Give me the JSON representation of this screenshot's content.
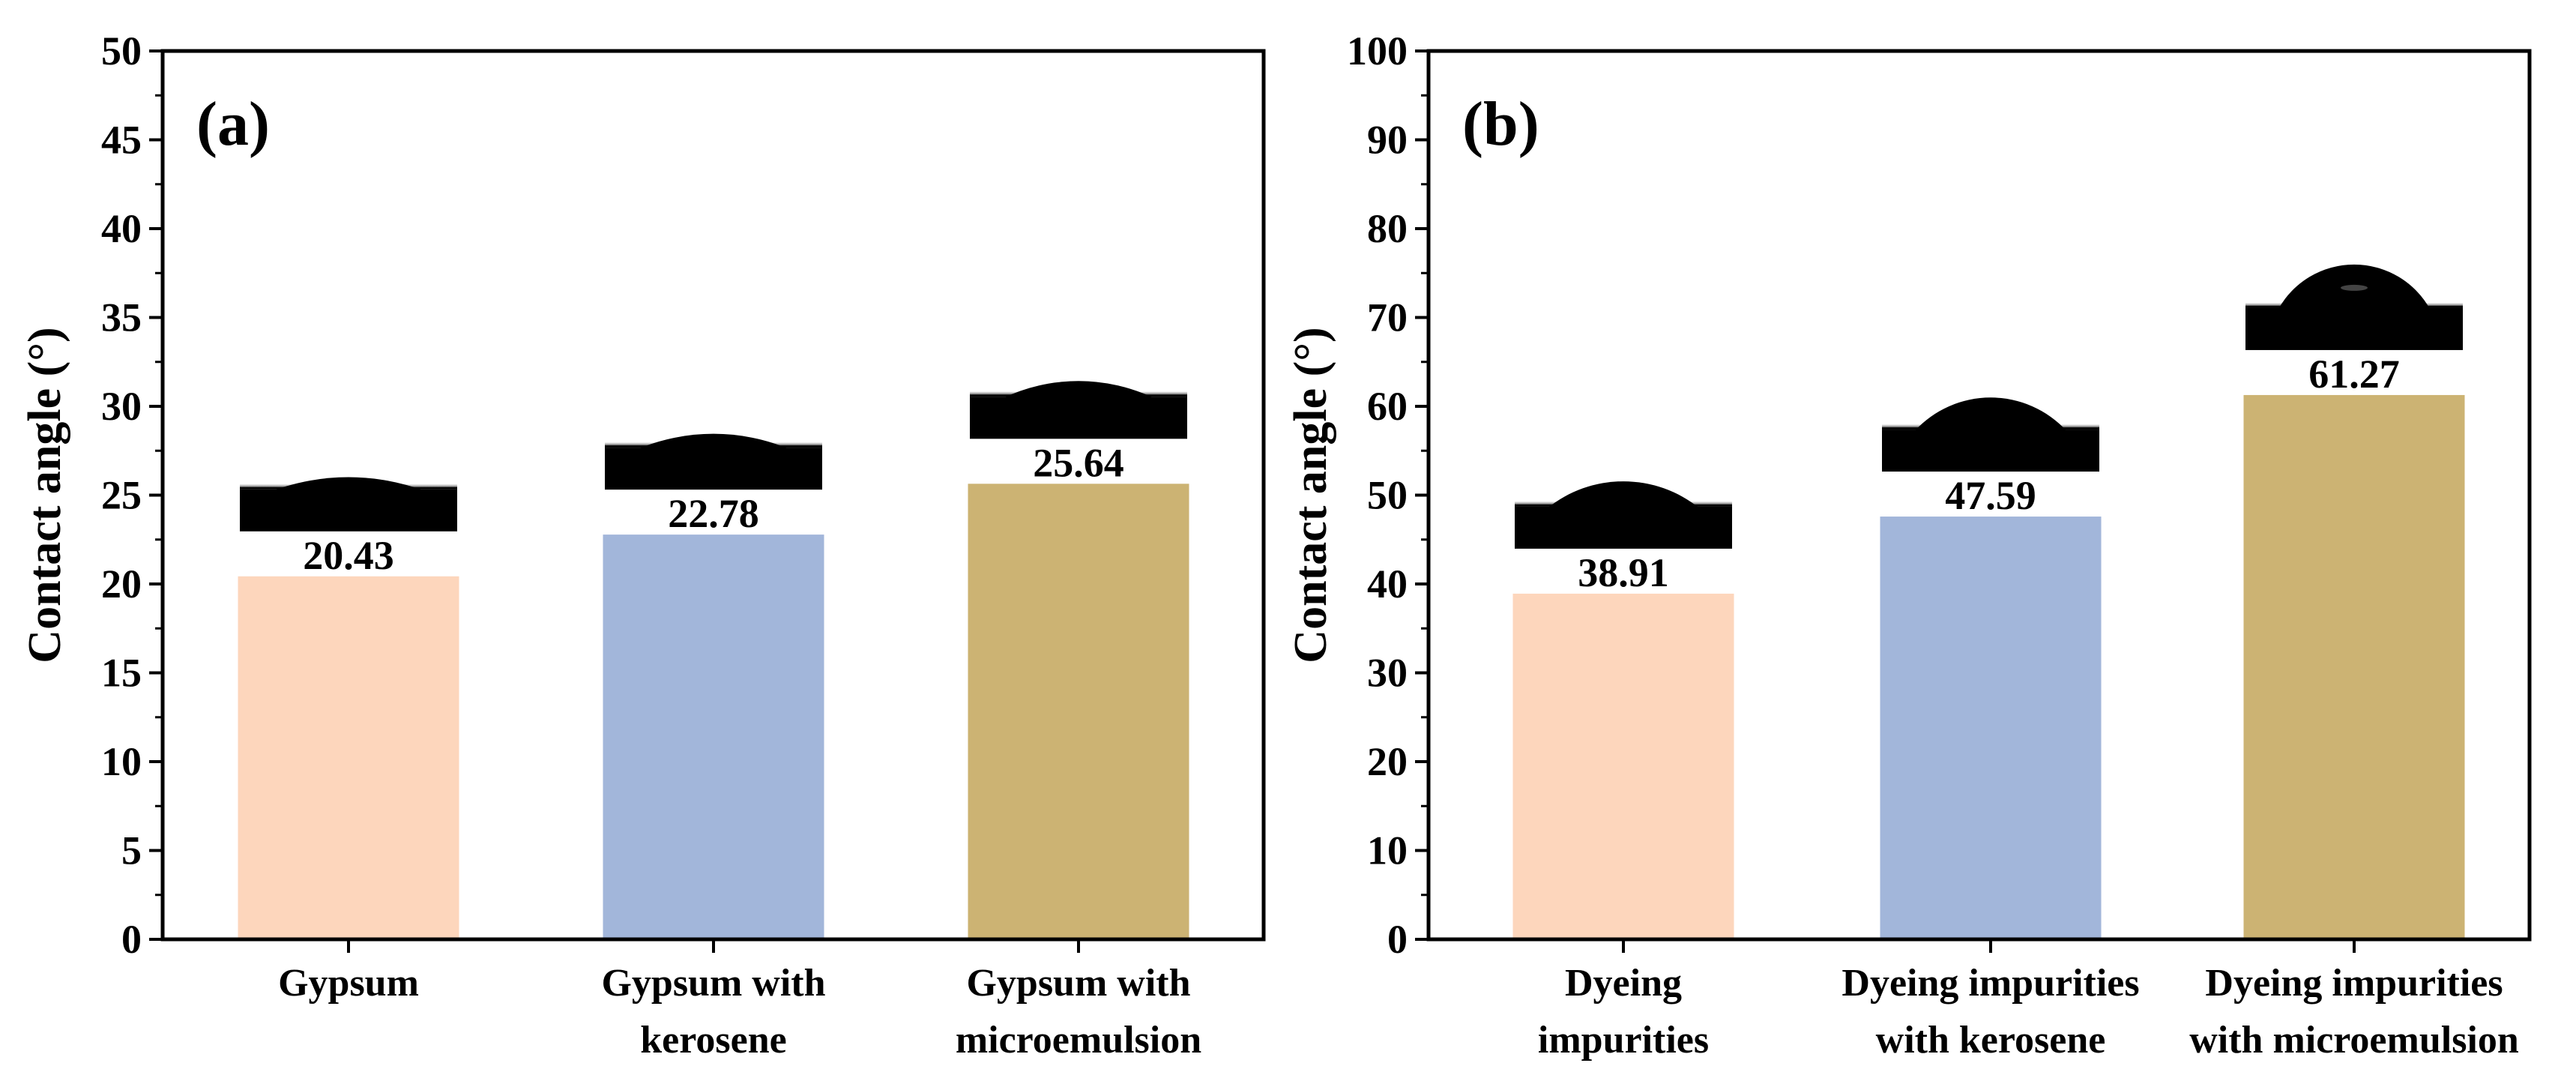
{
  "chart_data": [
    {
      "type": "bar",
      "panel_label": "(a)",
      "ylabel": "Contact angle (°)",
      "ylim": [
        0,
        50
      ],
      "yticks": [
        0,
        5,
        10,
        15,
        20,
        25,
        30,
        35,
        40,
        45,
        50
      ],
      "categories": [
        [
          "Gypsum"
        ],
        [
          "Gypsum with",
          "kerosene"
        ],
        [
          "Gypsum with",
          "microemulsion"
        ]
      ],
      "values": [
        20.43,
        22.78,
        25.64
      ],
      "value_labels": [
        "20.43",
        "22.78",
        "25.64"
      ],
      "bar_colors": [
        "#FDD6BC",
        "#A2B6DA",
        "#CCB373"
      ],
      "droplet_inset_angle_deg": [
        20.43,
        22.78,
        25.64
      ]
    },
    {
      "type": "bar",
      "panel_label": "(b)",
      "ylabel": "Contact angle (°)",
      "ylim": [
        0,
        100
      ],
      "yticks": [
        0,
        10,
        20,
        30,
        40,
        50,
        60,
        70,
        80,
        90,
        100
      ],
      "categories": [
        [
          "Dyeing",
          "impurities"
        ],
        [
          "Dyeing impurities",
          "with kerosene"
        ],
        [
          "Dyeing impurities",
          "with microemulsion"
        ]
      ],
      "values": [
        38.91,
        47.59,
        61.27
      ],
      "value_labels": [
        "38.91",
        "47.59",
        "61.27"
      ],
      "bar_colors": [
        "#FDD6BC",
        "#A2B6DA",
        "#CCB373"
      ],
      "droplet_inset_angle_deg": [
        38.91,
        47.59,
        61.27
      ]
    }
  ]
}
